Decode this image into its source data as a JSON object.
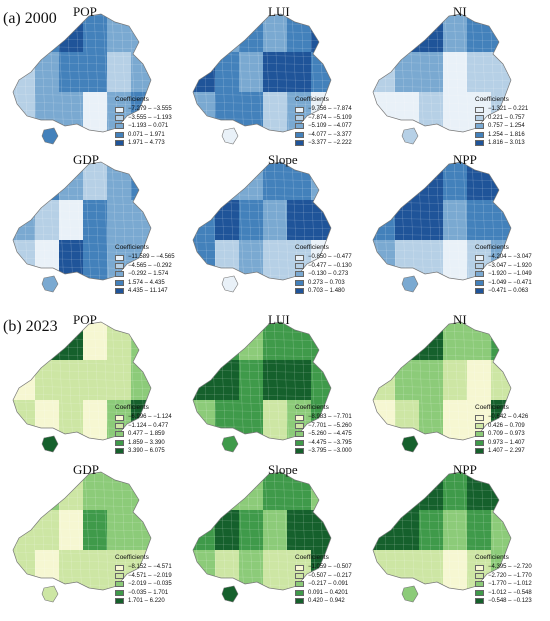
{
  "sections": [
    {
      "label": "(a) 2000",
      "colors": [
        "#e9f1f8",
        "#b6d0e6",
        "#7aa9d1",
        "#4381bb",
        "#1f5499"
      ],
      "panels": [
        {
          "title": "POP",
          "legend_title": "Coefficients",
          "classes": [
            "−7.279 – −3.555",
            "−3.555 – −1.193",
            "−1.193 – 0.071",
            "0.071 – 1.971",
            "1.971 – 4.773"
          ],
          "levels": [
            3,
            3,
            4,
            3,
            2,
            2,
            1,
            2,
            3,
            3,
            1,
            2,
            1,
            2,
            2,
            0,
            2,
            3
          ]
        },
        {
          "title": "LUI",
          "legend_title": "Coefficients",
          "classes": [
            "−9.756 – −7.874",
            "−7.874 – −5.109",
            "−5.109 – −4.077",
            "−4.077 – −3.377",
            "−3.377 – −2.222"
          ],
          "levels": [
            2,
            2,
            3,
            2,
            3,
            4,
            4,
            3,
            2,
            4,
            4,
            3,
            2,
            3,
            3,
            1,
            2,
            0
          ]
        },
        {
          "title": "NI",
          "legend_title": "Coefficients",
          "classes": [
            "−1.321 – 0.221",
            "0.221 – 0.757",
            "0.757 – 1.254",
            "1.254 – 1.816",
            "1.816 – 3.013"
          ],
          "levels": [
            3,
            4,
            4,
            2,
            3,
            3,
            1,
            2,
            2,
            0,
            1,
            1,
            0,
            0,
            1,
            0,
            0,
            1
          ]
        },
        {
          "title": "GDP",
          "legend_title": "Coefficients",
          "classes": [
            "−11.589 – −4.565",
            "−4.565 – −0.292",
            "−0.292 – 1.574",
            "1.574 – 4.435",
            "4.435 – 11.147"
          ],
          "levels": [
            2,
            3,
            2,
            1,
            2,
            3,
            2,
            1,
            0,
            3,
            2,
            2,
            1,
            0,
            4,
            3,
            2,
            2
          ]
        },
        {
          "title": "Slope",
          "legend_title": "Coefficients",
          "classes": [
            "−0.850 – −0.477",
            "−0.477 – −0.130",
            "−0.130 – 0.273",
            "0.273 – 0.703",
            "0.703 – 1.480"
          ],
          "levels": [
            1,
            2,
            2,
            3,
            3,
            2,
            3,
            4,
            3,
            2,
            4,
            4,
            3,
            1,
            2,
            1,
            1,
            0
          ]
        },
        {
          "title": "NPP",
          "legend_title": "Coefficients",
          "classes": [
            "−4.204 – −3.047",
            "−3.047 – −1.920",
            "−1.920 – −1.049",
            "−1.049 – −0.471",
            "−0.471 – 0.063"
          ],
          "levels": [
            3,
            4,
            4,
            3,
            4,
            4,
            3,
            4,
            4,
            2,
            3,
            3,
            2,
            1,
            1,
            0,
            1,
            2
          ]
        }
      ]
    },
    {
      "label": "(b) 2023",
      "colors": [
        "#f6f7d2",
        "#cde6a4",
        "#8ccb79",
        "#3f9a4a",
        "#15602c"
      ],
      "panels": [
        {
          "title": "POP",
          "legend_title": "Coefficients",
          "classes": [
            "−6.996 – −1.124",
            "−1.124 – 0.477",
            "0.477 – 1.859",
            "1.859 – 3.390",
            "3.390 – 6.075"
          ],
          "levels": [
            3,
            4,
            4,
            0,
            1,
            2,
            0,
            1,
            1,
            1,
            1,
            2,
            1,
            0,
            1,
            0,
            2,
            4
          ]
        },
        {
          "title": "LUI",
          "legend_title": "Coefficients",
          "classes": [
            "−8.983 – −7.701",
            "−7.701 – −5.260",
            "−5.260 – −4.475",
            "−4.475 – −3.795",
            "−3.795 – −3.000"
          ],
          "levels": [
            2,
            3,
            2,
            3,
            3,
            3,
            4,
            4,
            3,
            4,
            4,
            3,
            2,
            3,
            3,
            1,
            2,
            3
          ]
        },
        {
          "title": "NI",
          "legend_title": "Coefficients",
          "classes": [
            "−0.642 – 0.426",
            "0.426 – 0.709",
            "0.709 – 0.973",
            "0.973 – 1.407",
            "1.407 – 2.297"
          ],
          "levels": [
            3,
            4,
            4,
            2,
            2,
            3,
            1,
            2,
            2,
            1,
            0,
            1,
            0,
            1,
            2,
            0,
            0,
            4
          ]
        },
        {
          "title": "GDP",
          "legend_title": "Coefficients",
          "classes": [
            "−8.152 – −4.571",
            "−4.571 – −2.019",
            "−2.019 – −0.035",
            "−0.035 – 1.701",
            "1.701 – 6.220"
          ],
          "levels": [
            2,
            2,
            1,
            2,
            2,
            2,
            1,
            1,
            0,
            3,
            2,
            2,
            1,
            0,
            1,
            1,
            1,
            1
          ]
        },
        {
          "title": "Slope",
          "legend_title": "Coefficients",
          "classes": [
            "−1.059 – −0.507",
            "−0.507 – −0.217",
            "−0.217 – 0.091",
            "0.091 – 0.4201",
            "0.420 – 0.942"
          ],
          "levels": [
            1,
            2,
            2,
            3,
            3,
            2,
            3,
            4,
            3,
            2,
            4,
            4,
            2,
            1,
            2,
            1,
            1,
            4
          ]
        },
        {
          "title": "NPP",
          "legend_title": "Coefficients",
          "classes": [
            "−4.395 – −2.720",
            "−2.720 – −1.770",
            "−1.770 – −1.012",
            "−1.012 – −0.548",
            "−0.548 – −0.123"
          ],
          "levels": [
            3,
            4,
            4,
            3,
            4,
            4,
            4,
            4,
            3,
            2,
            3,
            2,
            1,
            1,
            1,
            0,
            1,
            2
          ]
        }
      ]
    }
  ]
}
